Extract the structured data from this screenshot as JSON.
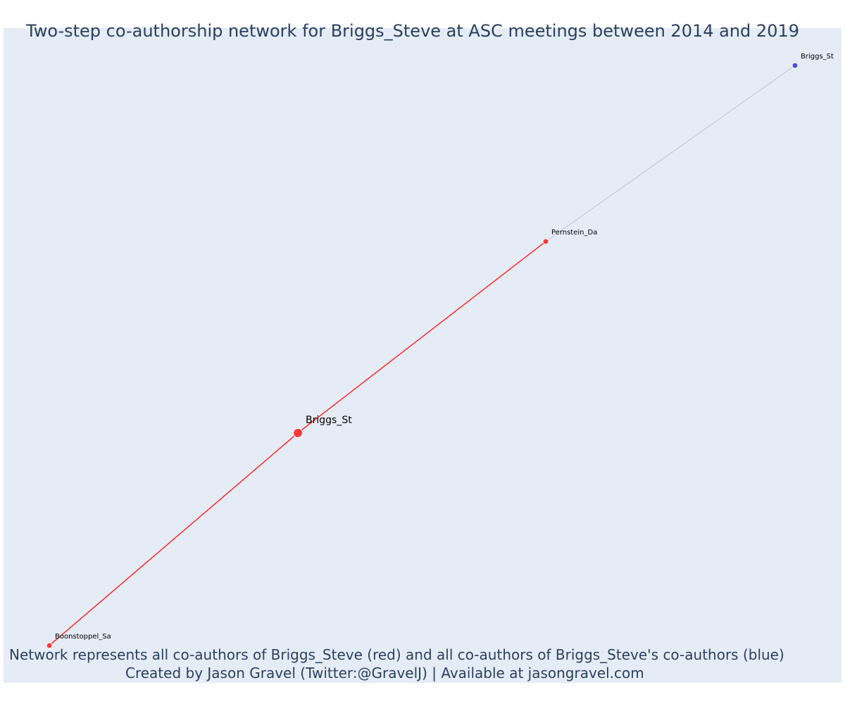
{
  "title": "Two-step co-authorship network for Briggs_Steve at ASC meetings between 2014 and 2019",
  "footer": {
    "line1": "Network represents all co-authors of Briggs_Steve (red) and all co-authors of Briggs_Steve's co-authors (blue)",
    "line2": "Created by Jason Gravel (Twitter:@GravelJ) | Available at jasongravel.com"
  },
  "colors": {
    "background": "#e5ecf6",
    "text": "#2a3f5f",
    "first_step": "#ff2a2a",
    "second_step": "#3b3bf0",
    "second_step_edge": "#c0c4d0"
  },
  "nodes": [
    {
      "id": "briggs-center",
      "label": "Briggs_St",
      "group": "focal"
    },
    {
      "id": "pernstein",
      "label": "Pernstein_Da",
      "group": "coauthor"
    },
    {
      "id": "boonstoppel",
      "label": "Boonstoppel_Sa",
      "group": "coauthor"
    },
    {
      "id": "briggs-two-step",
      "label": "Briggs_St",
      "group": "second_step"
    }
  ],
  "edges": [
    {
      "source": "boonstoppel",
      "target": "briggs-center",
      "group": "first_step"
    },
    {
      "source": "briggs-center",
      "target": "pernstein",
      "group": "first_step"
    },
    {
      "source": "pernstein",
      "target": "briggs-two-step",
      "group": "second_step"
    }
  ]
}
